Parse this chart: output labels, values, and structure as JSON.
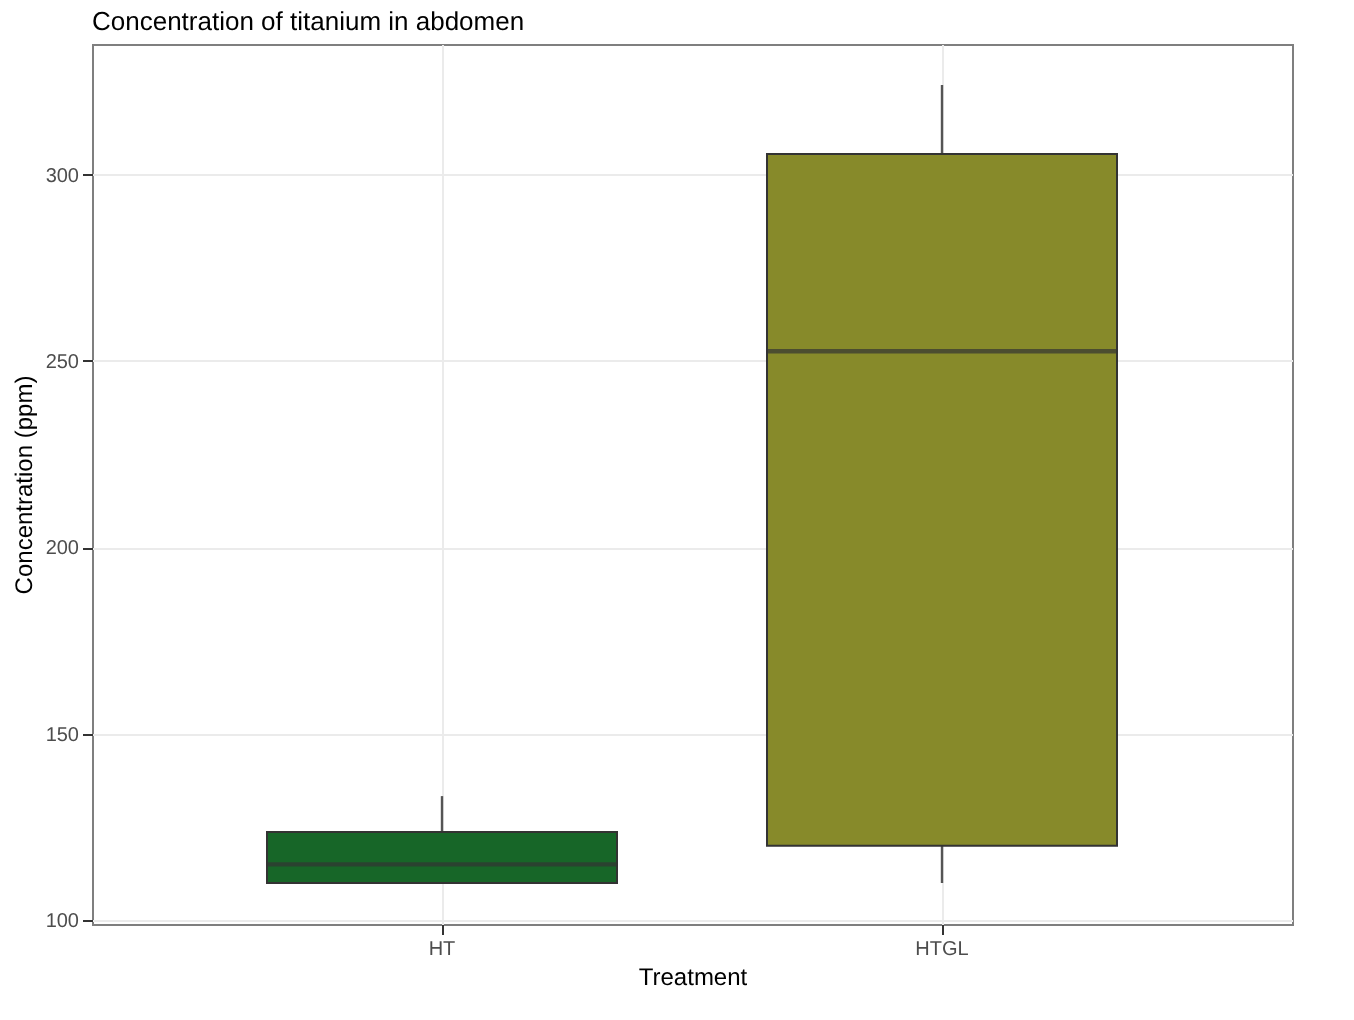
{
  "chart_data": {
    "type": "box",
    "title": "Concentration of titanium in abdomen",
    "xlabel": "Treatment",
    "ylabel": "Concentration (ppm)",
    "categories": [
      "HT",
      "HTGL"
    ],
    "boxes": [
      {
        "low": 110,
        "q1": 110,
        "median": 115,
        "q3": 123.7,
        "high": 133.3
      },
      {
        "low": 110,
        "q1": 120,
        "median": 252.6,
        "q3": 305.5,
        "high": 324
      }
    ],
    "colors": [
      "#176628",
      "#878a2a"
    ],
    "ylim": [
      99,
      335
    ],
    "yticks": [
      100,
      150,
      200,
      250,
      300
    ],
    "grid": true
  }
}
